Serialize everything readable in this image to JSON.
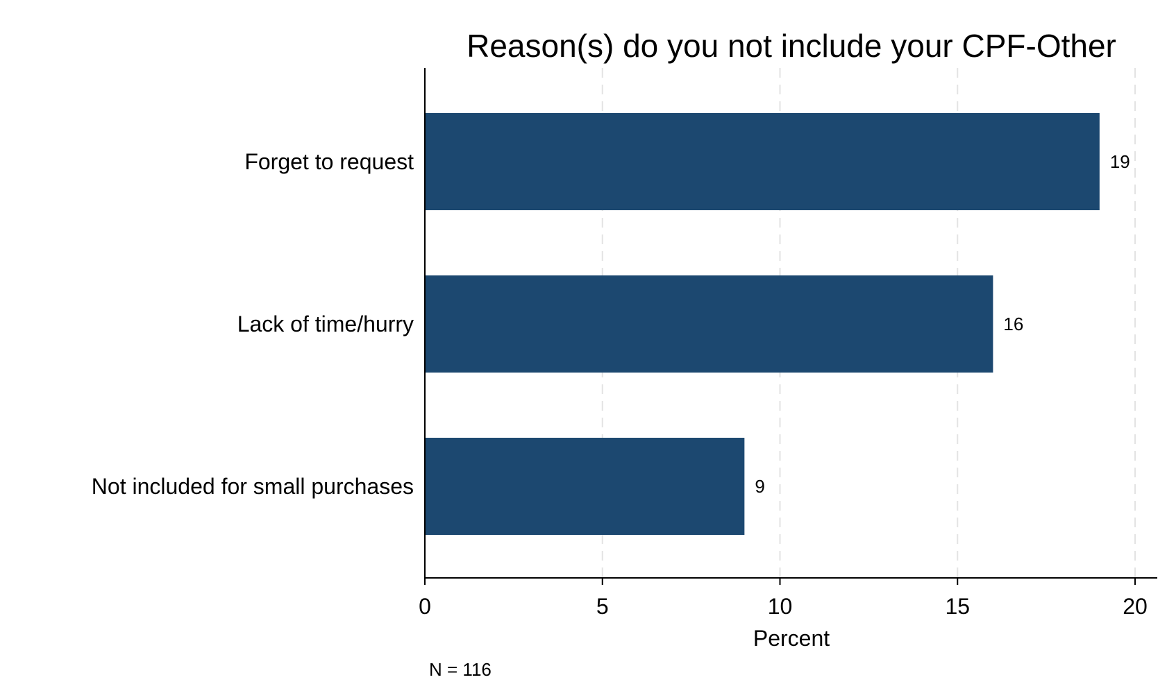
{
  "chart_data": {
    "type": "bar",
    "orientation": "horizontal",
    "title": "Reason(s) do you not include your CPF-Other",
    "xlabel": "Percent",
    "ylabel": "",
    "categories": [
      "Forget to request",
      "Lack of time/hurry",
      "Not included for small purchases"
    ],
    "values": [
      19,
      16,
      9
    ],
    "value_labels": [
      "19",
      "16",
      "9"
    ],
    "xlim": [
      0,
      20
    ],
    "xticks": [
      0,
      5,
      10,
      15,
      20
    ],
    "xtick_labels": [
      "0",
      "5",
      "10",
      "15",
      "20"
    ],
    "grid": true,
    "legend": "none",
    "bar_color": "#1c4870",
    "note": "N = 116"
  }
}
